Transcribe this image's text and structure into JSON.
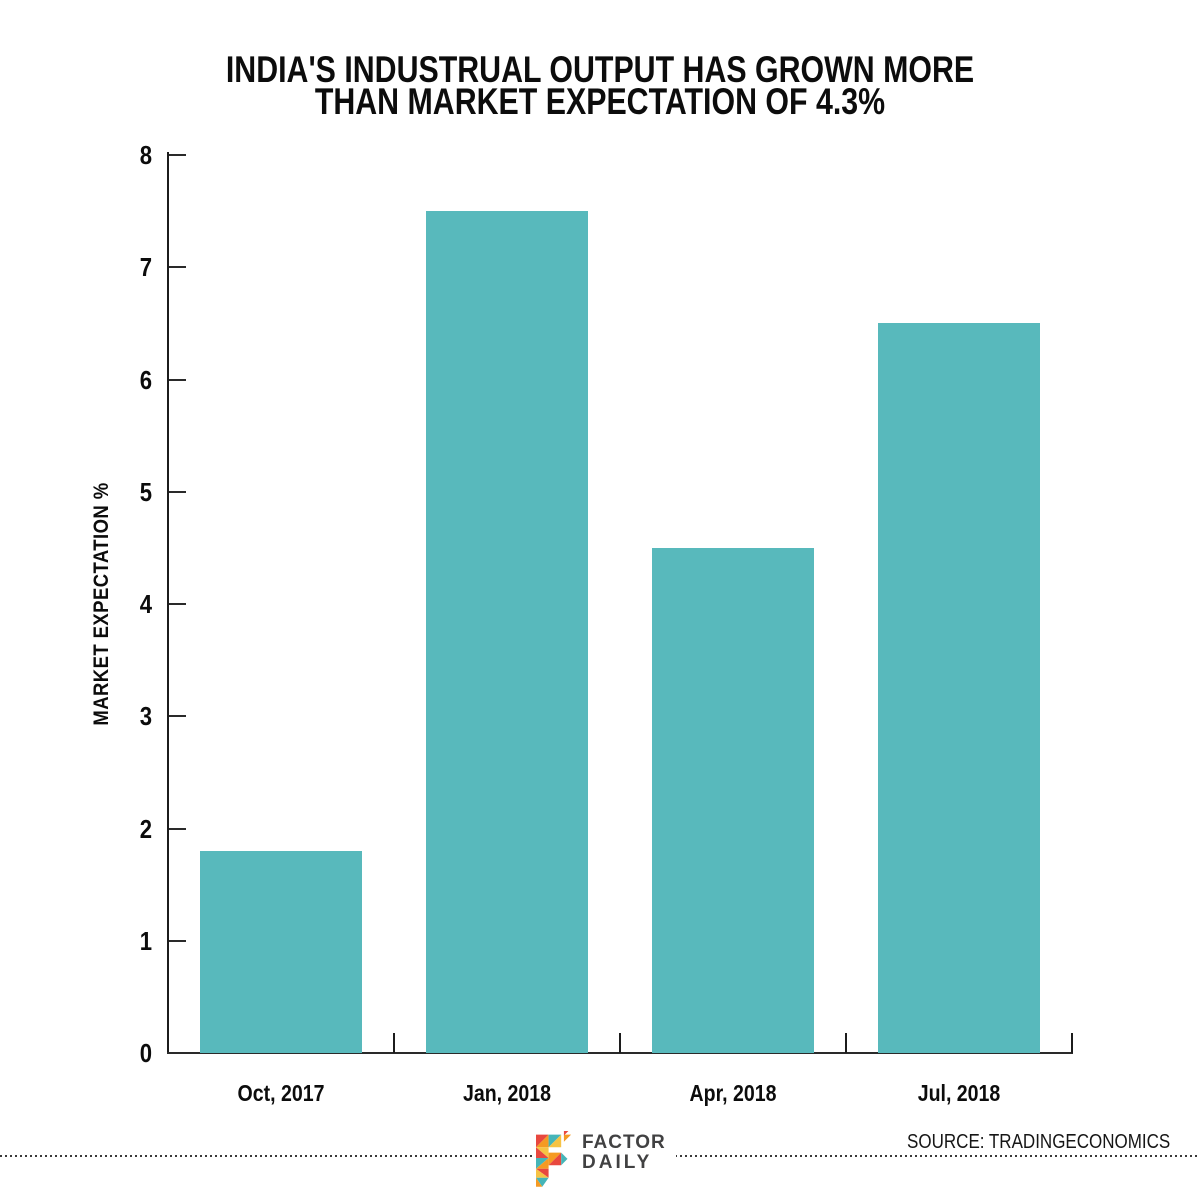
{
  "title": {
    "line1": "INDIA'S INDUSTRUAL OUTPUT HAS GROWN MORE",
    "line2": "THAN MARKET EXPECTATION OF 4.3%"
  },
  "chart_data": {
    "type": "bar",
    "title": "INDIA'S INDUSTRUAL OUTPUT HAS GROWN MORE THAN MARKET EXPECTATION OF 4.3%",
    "categories": [
      "Oct, 2017",
      "Jan, 2018",
      "Apr, 2018",
      "Jul, 2018"
    ],
    "values": [
      1.8,
      7.5,
      4.5,
      6.5
    ],
    "xlabel": "",
    "ylabel": "MARKET EXPECTATION %",
    "ylim": [
      0,
      8
    ],
    "yticks": [
      0,
      1,
      2,
      3,
      4,
      5,
      6,
      7,
      8
    ],
    "grid": false,
    "legend": null,
    "bar_color": "#58b9bc",
    "axis_color": "#1c1c1c",
    "tick_direction": "in"
  },
  "footer": {
    "logo": {
      "icon": "factor-daily-f-mosaic-icon",
      "line1": "FACTOR",
      "line2": "DAILY",
      "colors": [
        "#e8483f",
        "#f59a23",
        "#45b5b8",
        "#f6c344"
      ]
    },
    "source": "SOURCE: TRADINGECONOMICS"
  }
}
